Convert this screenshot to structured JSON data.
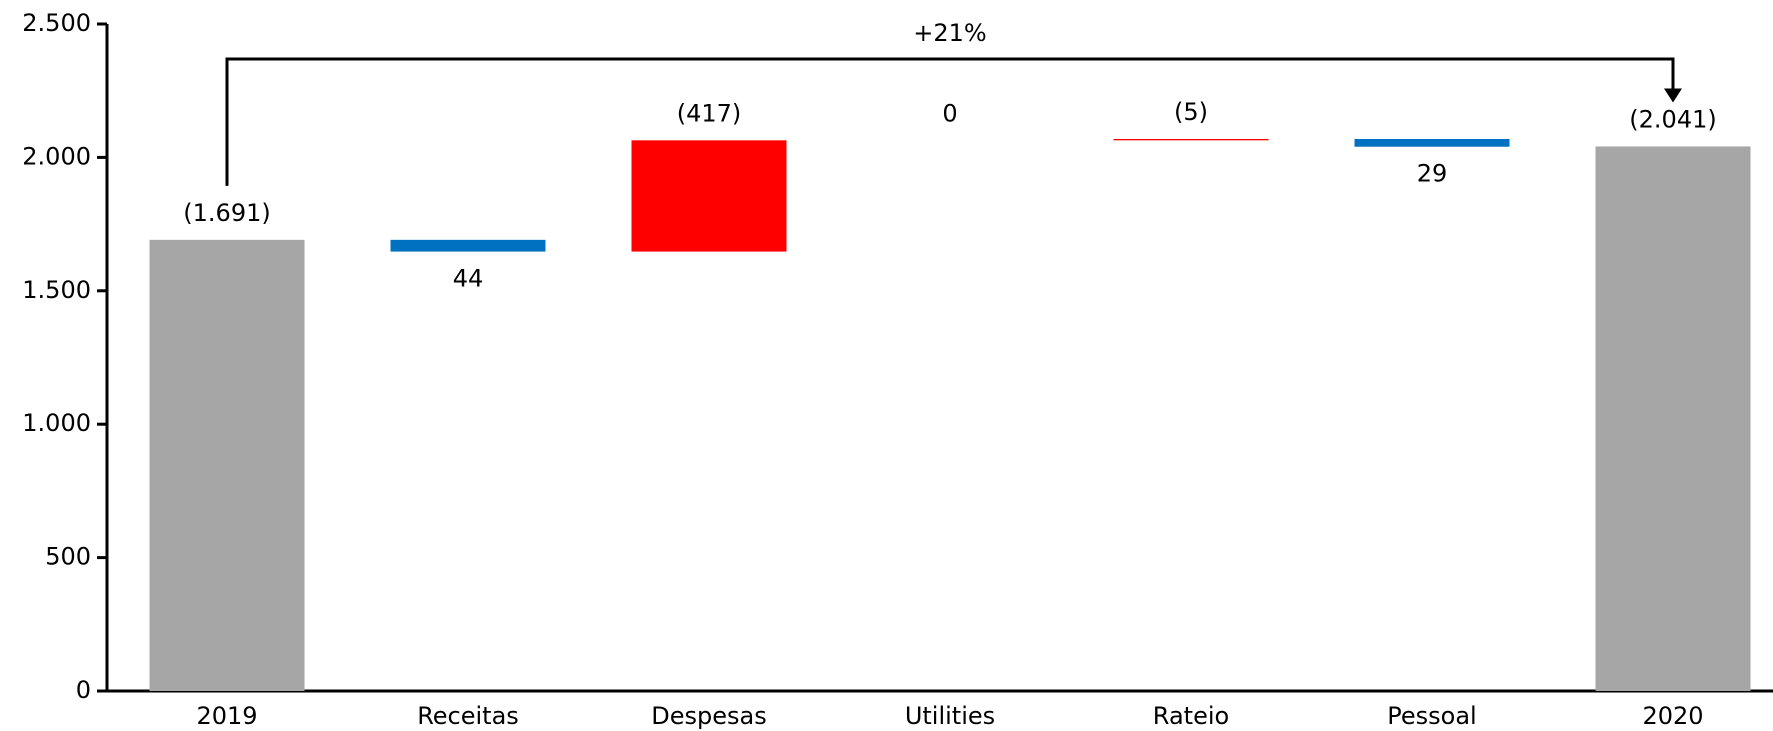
{
  "chart_data": {
    "type": "waterfall",
    "categories": [
      "2019",
      "Receitas",
      "Despesas",
      "Utilities",
      "Rateio",
      "Pessoal",
      "2020"
    ],
    "values": [
      1691,
      -44,
      417,
      0,
      5,
      -29,
      2041
    ],
    "value_labels": [
      "(1.691)",
      "44",
      "(417)",
      "0",
      "(5)",
      "29",
      "(2.041)"
    ],
    "colors": {
      "total": "#a6a6a6",
      "increase": "#ff0000",
      "decrease": "#0070c0"
    },
    "annotation": "+21%",
    "ylim": [
      0,
      2500
    ],
    "yticks": [
      {
        "value": 0,
        "label": "0"
      },
      {
        "value": 500,
        "label": "500"
      },
      {
        "value": 1000,
        "label": "1.000"
      },
      {
        "value": 1500,
        "label": "1.500"
      },
      {
        "value": 2000,
        "label": "2.000"
      },
      {
        "value": 2500,
        "label": "2.500"
      }
    ]
  }
}
